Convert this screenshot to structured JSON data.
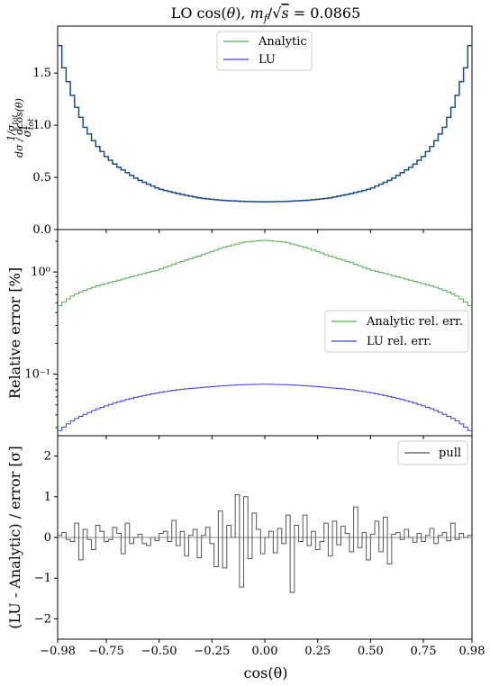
{
  "chart_data": [
    {
      "panel": "top",
      "type": "line",
      "title": "LO cos(θ), m_f/√s = 0.0865",
      "ylabel": "(1/σ_tot) dσ/dcos(θ)",
      "xlim": [
        -0.98,
        0.98
      ],
      "ylim": [
        0.0,
        1.95
      ],
      "yticks": [
        "0.0",
        "0.5",
        "1.0",
        "1.5"
      ],
      "legend": {
        "placement": "top-center",
        "entries": [
          "Analytic",
          "LU"
        ]
      },
      "series": [
        {
          "name": "Analytic",
          "color": "#4daf4a",
          "values_formula": "symmetric"
        },
        {
          "name": "LU",
          "color": "#3c3cf0"
        }
      ],
      "x": [
        -0.98,
        -0.95,
        -0.9,
        -0.85,
        -0.8,
        -0.75,
        -0.7,
        -0.6,
        -0.5,
        -0.4,
        -0.3,
        -0.2,
        -0.1,
        0.0,
        0.1,
        0.2,
        0.3,
        0.4,
        0.5,
        0.6,
        0.7,
        0.75,
        0.8,
        0.85,
        0.9,
        0.95,
        0.98
      ],
      "y": [
        1.87,
        1.55,
        1.22,
        0.98,
        0.82,
        0.7,
        0.61,
        0.48,
        0.39,
        0.34,
        0.3,
        0.28,
        0.27,
        0.265,
        0.27,
        0.28,
        0.3,
        0.34,
        0.39,
        0.48,
        0.61,
        0.7,
        0.82,
        0.98,
        1.22,
        1.55,
        1.87
      ]
    },
    {
      "panel": "middle",
      "type": "line",
      "ylabel": "Relative error [%]",
      "yscale": "log",
      "xlim": [
        -0.98,
        0.98
      ],
      "ylim": [
        0.025,
        2.6
      ],
      "yticks": [
        "10⁻¹",
        "10⁰"
      ],
      "legend": {
        "placement": "center-right",
        "entries": [
          "Analytic rel. err.",
          "LU rel. err."
        ]
      },
      "series": [
        {
          "name": "Analytic rel. err.",
          "color": "#4daf4a",
          "x": [
            -0.98,
            -0.9,
            -0.8,
            -0.7,
            -0.6,
            -0.5,
            -0.4,
            -0.3,
            -0.2,
            -0.1,
            0.0,
            0.1,
            0.2,
            0.3,
            0.4,
            0.5,
            0.6,
            0.7,
            0.8,
            0.9,
            0.98
          ],
          "values": [
            0.45,
            0.6,
            0.72,
            0.82,
            0.93,
            1.05,
            1.25,
            1.45,
            1.72,
            1.95,
            2.05,
            1.95,
            1.72,
            1.45,
            1.25,
            1.05,
            0.93,
            0.82,
            0.72,
            0.6,
            0.45
          ]
        },
        {
          "name": "LU rel. err.",
          "color": "#3c3cf0",
          "x": [
            -0.98,
            -0.9,
            -0.8,
            -0.7,
            -0.6,
            -0.5,
            -0.4,
            -0.3,
            -0.2,
            -0.1,
            0.0,
            0.1,
            0.2,
            0.3,
            0.4,
            0.5,
            0.6,
            0.7,
            0.8,
            0.9,
            0.98
          ],
          "values": [
            0.027,
            0.036,
            0.045,
            0.053,
            0.06,
            0.066,
            0.071,
            0.074,
            0.077,
            0.079,
            0.08,
            0.079,
            0.077,
            0.074,
            0.071,
            0.066,
            0.06,
            0.053,
            0.045,
            0.036,
            0.027
          ]
        }
      ]
    },
    {
      "panel": "bottom",
      "type": "line",
      "ylabel": "(LU - Analytic) / error [σ]",
      "xlabel": "cos(θ)",
      "xlim": [
        -0.98,
        0.98
      ],
      "ylim": [
        -2.5,
        2.5
      ],
      "yticks": [
        "−2",
        "−1",
        "0",
        "1",
        "2"
      ],
      "xticks": [
        "−0.98",
        "−0.75",
        "−0.50",
        "−0.25",
        "0.00",
        "0.25",
        "0.50",
        "0.75",
        "0.98"
      ],
      "xtick_values": [
        -0.98,
        -0.75,
        -0.5,
        -0.25,
        0.0,
        0.25,
        0.5,
        0.75,
        0.98
      ],
      "legend": {
        "placement": "top-right",
        "entries": [
          "pull"
        ]
      },
      "series": [
        {
          "name": "pull",
          "color": "#555555",
          "values": [
            0.05,
            0.12,
            -0.05,
            -0.1,
            0.35,
            -0.55,
            0.2,
            -0.05,
            -0.3,
            0.3,
            0.15,
            -0.1,
            -0.05,
            0.25,
            0.1,
            -0.4,
            0.35,
            -0.15,
            0.0,
            0.08,
            -0.15,
            -0.2,
            0.0,
            -0.08,
            0.1,
            0.15,
            -0.1,
            0.42,
            -0.2,
            0.15,
            -0.45,
            0.05,
            0.2,
            -0.5,
            0.05,
            0.25,
            -0.15,
            -0.72,
            0.65,
            -0.75,
            0.3,
            0.0,
            1.05,
            -1.22,
            1.0,
            -0.52,
            0.6,
            0.2,
            -0.4,
            0.0,
            0.15,
            -0.38,
            0.22,
            -0.15,
            0.55,
            -1.35,
            0.3,
            -0.1,
            0.55,
            -0.2,
            0.15,
            -0.3,
            -0.1,
            0.35,
            -0.45,
            0.4,
            -0.18,
            0.28,
            0.1,
            -0.35,
            0.75,
            -0.25,
            0.12,
            -0.55,
            0.08,
            0.4,
            -0.35,
            0.5,
            -0.65,
            0.08,
            0.12,
            -0.05,
            0.2,
            0.0,
            -0.12,
            0.1,
            -0.1,
            0.05,
            0.22,
            -0.15,
            0.05,
            0.12,
            -0.08,
            0.35,
            -0.05,
            0.1,
            0.0,
            0.05,
            -0.02,
            0.08
          ]
        }
      ]
    }
  ]
}
